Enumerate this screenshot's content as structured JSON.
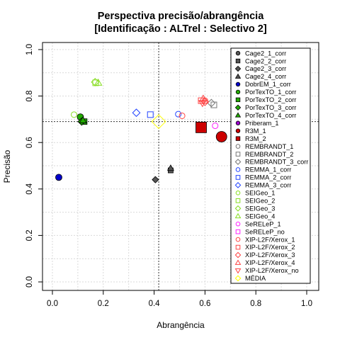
{
  "chart_data": {
    "type": "scatter",
    "title": "Perspectiva precisão/abrangência",
    "subtitle": "[Identificação : ALTrel : Selectivo 2]",
    "xlabel": "Abrangência",
    "ylabel": "Precisão",
    "xlim": [
      0,
      1
    ],
    "ylim": [
      0,
      1
    ],
    "x_ticks": [
      "0.0",
      "0.2",
      "0.4",
      "0.6",
      "0.8",
      "1.0"
    ],
    "y_ticks": [
      "0.0",
      "0.2",
      "0.4",
      "0.6",
      "0.8",
      "1.0"
    ],
    "grid": true,
    "legend_position": "right",
    "reference_lines": {
      "x": 0.418,
      "y": 0.69
    },
    "series": [
      {
        "name": "Cage2_1_corr",
        "color": "#555555",
        "marker": "circle-filled",
        "points": []
      },
      {
        "name": "Cage2_2_corr",
        "color": "#555555",
        "marker": "square-filled",
        "points": [
          [
            0.465,
            0.48
          ]
        ]
      },
      {
        "name": "Cage2_3_corr",
        "color": "#555555",
        "marker": "diamond-filled",
        "points": [
          [
            0.405,
            0.44
          ]
        ]
      },
      {
        "name": "Cage2_4_corr",
        "color": "#555555",
        "marker": "triangle-filled",
        "points": [
          [
            0.465,
            0.49
          ]
        ]
      },
      {
        "name": "DobrEM_1_corr",
        "color": "#0000cc",
        "marker": "circle-filled",
        "points": [
          [
            0.025,
            0.45
          ]
        ]
      },
      {
        "name": "PorTexTO_1_corr",
        "color": "#22aa00",
        "marker": "circle-filled",
        "points": [
          [
            0.11,
            0.71
          ]
        ]
      },
      {
        "name": "PorTexTO_2_corr",
        "color": "#22aa00",
        "marker": "square-filled",
        "points": [
          [
            0.125,
            0.69
          ]
        ]
      },
      {
        "name": "PorTexTO_3_corr",
        "color": "#22aa00",
        "marker": "diamond-filled",
        "points": [
          [
            0.115,
            0.69
          ]
        ]
      },
      {
        "name": "PorTexTO_4_corr",
        "color": "#22aa00",
        "marker": "triangle-filled",
        "points": [
          [
            0.12,
            0.695
          ]
        ]
      },
      {
        "name": "Priberam_1",
        "color": "#9900cc",
        "marker": "circle-filled",
        "points": []
      },
      {
        "name": "R3M_1",
        "color": "#cc0000",
        "marker": "circle-filled",
        "points": [
          [
            0.665,
            0.625
          ]
        ]
      },
      {
        "name": "R3M_2",
        "color": "#cc0000",
        "marker": "square-filled",
        "points": [
          [
            0.585,
            0.665
          ]
        ]
      },
      {
        "name": "REMBRANDT_1",
        "color": "#777777",
        "marker": "circle-open",
        "points": []
      },
      {
        "name": "REMBRANDT_2",
        "color": "#777777",
        "marker": "square-open",
        "points": [
          [
            0.635,
            0.762
          ]
        ]
      },
      {
        "name": "REMBRANDT_3_corr",
        "color": "#777777",
        "marker": "diamond-open",
        "points": [
          [
            0.625,
            0.77
          ]
        ]
      },
      {
        "name": "REMMA_1_corr",
        "color": "#2244ff",
        "marker": "circle-open",
        "points": [
          [
            0.495,
            0.722
          ]
        ]
      },
      {
        "name": "REMMA_2_corr",
        "color": "#2244ff",
        "marker": "square-open",
        "points": [
          [
            0.385,
            0.72
          ]
        ]
      },
      {
        "name": "REMMA_3_corr",
        "color": "#2244ff",
        "marker": "diamond-open",
        "points": [
          [
            0.33,
            0.728
          ]
        ]
      },
      {
        "name": "SEIGeo_1",
        "color": "#88dd22",
        "marker": "circle-open",
        "points": [
          [
            0.085,
            0.72
          ]
        ]
      },
      {
        "name": "SEIGeo_2",
        "color": "#88dd22",
        "marker": "square-open",
        "points": [
          [
            0.17,
            0.857
          ]
        ]
      },
      {
        "name": "SEIGeo_3",
        "color": "#88dd22",
        "marker": "diamond-open",
        "points": [
          [
            0.168,
            0.86
          ]
        ]
      },
      {
        "name": "SEIGeo_4",
        "color": "#88dd22",
        "marker": "triangle-open",
        "points": [
          [
            0.18,
            0.857
          ]
        ]
      },
      {
        "name": "SeRELeP_1",
        "color": "#ff22ff",
        "marker": "circle-open",
        "points": [
          [
            0.64,
            0.672
          ]
        ]
      },
      {
        "name": "SeRELeP_no",
        "color": "#ff22ff",
        "marker": "square-open",
        "points": []
      },
      {
        "name": "XIP-L2F/Xerox_1",
        "color": "#ff4444",
        "marker": "circle-open",
        "points": [
          [
            0.51,
            0.715
          ],
          [
            0.6,
            0.78
          ]
        ]
      },
      {
        "name": "XIP-L2F/Xerox_2",
        "color": "#ff4444",
        "marker": "square-open",
        "points": [
          [
            0.585,
            0.78
          ]
        ]
      },
      {
        "name": "XIP-L2F/Xerox_3",
        "color": "#ff4444",
        "marker": "diamond-open",
        "points": [
          [
            0.6,
            0.775
          ]
        ]
      },
      {
        "name": "XIP-L2F/Xerox_4",
        "color": "#ff4444",
        "marker": "triangle-open",
        "points": [
          [
            0.593,
            0.788
          ]
        ]
      },
      {
        "name": "XIP-L2F/Xerox_no",
        "color": "#ff4444",
        "marker": "triangle-down-open",
        "points": [
          [
            0.59,
            0.77
          ]
        ]
      },
      {
        "name": "MÉDIA",
        "color": "#ffff00",
        "marker": "diamond-open-large",
        "points": [
          [
            0.418,
            0.69
          ]
        ]
      }
    ]
  }
}
